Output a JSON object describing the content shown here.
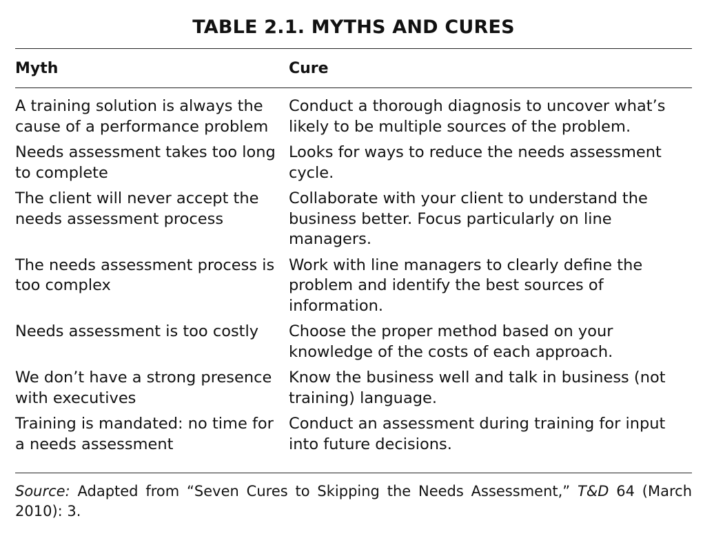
{
  "title": "TABLE 2.1.  MYTHS AND CURES",
  "headers": {
    "myth": "Myth",
    "cure": "Cure"
  },
  "rows": [
    {
      "myth": "A training solution is always the cause of a performance problem",
      "cure": "Conduct a thorough diagnosis to uncover what’s likely to be multiple sources of the problem."
    },
    {
      "myth": "Needs assessment takes too long to complete",
      "cure": "Looks for ways to reduce the needs assessment cycle."
    },
    {
      "myth": "The client will never accept the needs assessment process",
      "cure": "Collaborate with your client to understand the business better. Focus particularly on line managers."
    },
    {
      "myth": "The needs assessment process is too complex",
      "cure": "Work with line managers to clearly define the problem and identify the best sources of information."
    },
    {
      "myth": "Needs assessment is too costly",
      "cure": "Choose the proper method based on your knowledge of the costs of each approach."
    },
    {
      "myth": "We don’t have a strong presence with executives",
      "cure": "Know the business well and talk in business (not training) language."
    },
    {
      "myth": "Training is mandated: no time for a needs assessment",
      "cure": "Conduct an assessment during training for input into future decisions."
    }
  ],
  "source": {
    "label": "Source:",
    "text": " Adapted from “Seven Cures to Skipping the Needs Assessment,” ",
    "journal": "T&D",
    "citation": " 64 (March 2010): 3."
  }
}
